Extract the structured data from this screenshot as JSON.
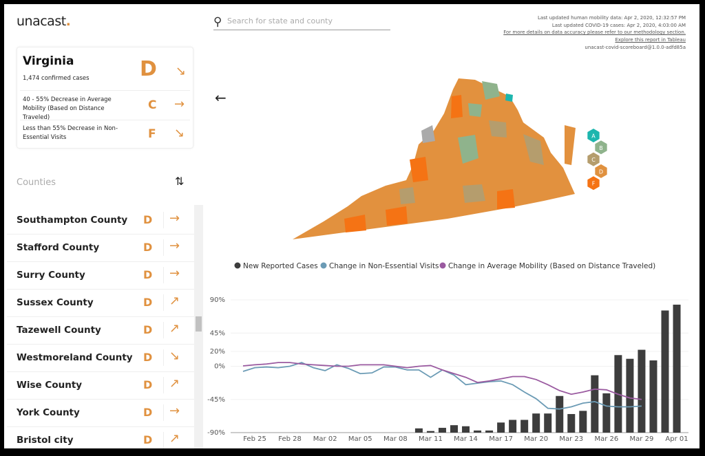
{
  "header": {
    "logo": "unacast",
    "logo_dot": ".",
    "search_placeholder": "Search for state and county",
    "notes": [
      "Last updated human mobility data: Apr 2, 2020, 12:32:57 PM",
      "Last updated COVID-19 cases: Apr 2, 2020, 4:03:00 AM",
      "For more details on data accuracy please refer to our methodology section.",
      "Explore this report in Tableau",
      "unacast-covid-scoreboard@1.0.0-adfd85a"
    ]
  },
  "state_card": {
    "name": "Virginia",
    "cases": "1,474 confirmed cases",
    "grade": "D",
    "trend": "↘",
    "metrics": [
      {
        "label": "40 - 55% Decrease in Average Mobility (Based on Distance Traveled)",
        "grade": "C",
        "trend": "→"
      },
      {
        "label": "Less than 55% Decrease in Non-Essential Visits",
        "grade": "F",
        "trend": "↘"
      }
    ]
  },
  "counties": {
    "title": "Counties",
    "rows": [
      {
        "name": "Southampton County",
        "grade": "D",
        "trend": "→"
      },
      {
        "name": "Stafford County",
        "grade": "D",
        "trend": "→"
      },
      {
        "name": "Surry County",
        "grade": "D",
        "trend": "→"
      },
      {
        "name": "Sussex County",
        "grade": "D",
        "trend": "↗"
      },
      {
        "name": "Tazewell County",
        "grade": "D",
        "trend": "↗"
      },
      {
        "name": "Westmoreland County",
        "grade": "D",
        "trend": "↘"
      },
      {
        "name": "Wise County",
        "grade": "D",
        "trend": "↗"
      },
      {
        "name": "York County",
        "grade": "D",
        "trend": "→"
      },
      {
        "name": "Bristol city",
        "grade": "D",
        "trend": "↗"
      }
    ]
  },
  "map_legend": [
    {
      "grade": "A",
      "color": "#1db6ae"
    },
    {
      "grade": "B",
      "color": "#8fb38c"
    },
    {
      "grade": "C",
      "color": "#b59d6d"
    },
    {
      "grade": "D",
      "color": "#e0913f"
    },
    {
      "grade": "F",
      "color": "#f57314"
    }
  ],
  "chart_data": {
    "type": "line",
    "grid": true,
    "categories": [
      null,
      "Feb 25",
      null,
      null,
      "Feb 28",
      null,
      null,
      "Mar 02",
      null,
      null,
      "Mar 05",
      null,
      null,
      "Mar 08",
      null,
      null,
      "Mar 11",
      null,
      null,
      "Mar 14",
      null,
      null,
      "Mar 17",
      null,
      null,
      "Mar 20",
      null,
      null,
      "Mar 23",
      null,
      null,
      "Mar 26",
      null,
      null,
      "Mar 29",
      null,
      null,
      "Apr 01"
    ],
    "ylim": [
      -90,
      90
    ],
    "yticks": [
      {
        "value": 90,
        "label": "90%"
      },
      {
        "value": 45,
        "label": "45%"
      },
      {
        "value": 20,
        "label": "20%"
      },
      {
        "value": 0,
        "label": "0%"
      },
      {
        "value": -45,
        "label": "-45%"
      },
      {
        "value": -90,
        "label": "-90%"
      }
    ],
    "y2lim": [
      0,
      250
    ],
    "series": [
      {
        "name": "New Reported Cases",
        "type": "bar",
        "axis": "y2",
        "color": "#3d3d3d",
        "values": [
          null,
          null,
          null,
          null,
          null,
          null,
          null,
          null,
          null,
          null,
          null,
          null,
          null,
          null,
          null,
          8,
          3,
          9,
          14,
          12,
          4,
          4,
          19,
          24,
          24,
          36,
          36,
          69,
          35,
          41,
          108,
          74,
          146,
          139,
          156,
          136,
          230,
          241
        ]
      },
      {
        "name": "Change in Non-Essential Visits",
        "type": "line",
        "color": "#6b9bb5",
        "values": [
          -7,
          -2,
          -1,
          -2,
          0,
          5,
          -2,
          -6,
          2,
          -3,
          -10,
          -9,
          -1,
          -1,
          -5,
          -5,
          -15,
          -5,
          -12,
          -25,
          -23,
          -21,
          -20,
          -25,
          -35,
          -44,
          -57,
          -58,
          -55,
          -50,
          -48,
          -54,
          -55,
          -55,
          -54,
          null,
          null,
          null
        ]
      },
      {
        "name": "Change in Average Mobility (Based on Distance Traveled)",
        "type": "line",
        "color": "#9a5aa0",
        "values": [
          0.5,
          2,
          3,
          5,
          5,
          3,
          2,
          1,
          0,
          0,
          2,
          2,
          2,
          0,
          -2,
          0,
          1,
          -5,
          -10,
          -15,
          -22,
          -20,
          -17,
          -14,
          -14,
          -18,
          -25,
          -33,
          -38,
          -35,
          -31,
          -32,
          -38,
          -43,
          -45,
          null,
          null,
          null
        ]
      }
    ]
  }
}
